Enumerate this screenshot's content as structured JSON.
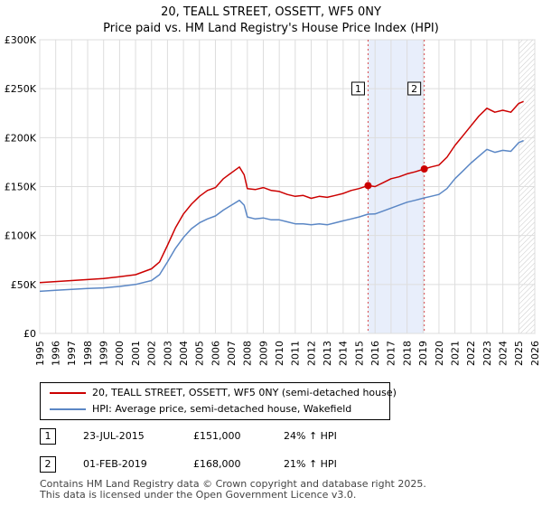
{
  "chart_data": {
    "type": "line",
    "title": "20, TEALL STREET, OSSETT, WF5 0NY",
    "subtitle": "Price paid vs. HM Land Registry's House Price Index (HPI)",
    "xlabel": "",
    "ylabel": "",
    "xlim": [
      1995,
      2026
    ],
    "ylim": [
      0,
      300000
    ],
    "x_ticks": [
      1995,
      1996,
      1997,
      1998,
      1999,
      2000,
      2001,
      2002,
      2003,
      2004,
      2005,
      2006,
      2007,
      2008,
      2009,
      2010,
      2011,
      2012,
      2013,
      2014,
      2015,
      2016,
      2017,
      2018,
      2019,
      2020,
      2021,
      2022,
      2023,
      2024,
      2025,
      2026
    ],
    "y_ticks": [
      0,
      50000,
      100000,
      150000,
      200000,
      250000,
      300000
    ],
    "y_tick_labels": [
      "£0",
      "£50K",
      "£100K",
      "£150K",
      "£200K",
      "£250K",
      "£300K"
    ],
    "grid": true,
    "shaded_span": [
      2015.56,
      2019.08
    ],
    "hatched_from": 2025.0,
    "series": [
      {
        "name": "20, TEALL STREET, OSSETT, WF5 0NY (semi-detached house)",
        "color": "#cc0000",
        "x": [
          1995,
          1996,
          1997,
          1998,
          1999,
          2000,
          2001,
          2002,
          2002.5,
          2003,
          2003.5,
          2004,
          2004.5,
          2005,
          2005.5,
          2006,
          2006.5,
          2007,
          2007.5,
          2007.8,
          2008,
          2008.5,
          2009,
          2009.5,
          2010,
          2010.5,
          2011,
          2011.5,
          2012,
          2012.5,
          2013,
          2013.5,
          2014,
          2014.5,
          2015,
          2015.56,
          2016,
          2016.5,
          2017,
          2017.5,
          2018,
          2018.5,
          2019.08,
          2019.5,
          2020,
          2020.5,
          2021,
          2021.5,
          2022,
          2022.5,
          2023,
          2023.5,
          2024,
          2024.5,
          2025,
          2025.3
        ],
        "y": [
          52000,
          53000,
          54000,
          55000,
          56000,
          58000,
          60000,
          66000,
          73000,
          90000,
          108000,
          122000,
          132000,
          140000,
          146000,
          149000,
          158000,
          164000,
          170000,
          162000,
          148000,
          147000,
          149000,
          146000,
          145000,
          142000,
          140000,
          141000,
          138000,
          140000,
          139000,
          141000,
          143000,
          146000,
          148000,
          151000,
          150000,
          154000,
          158000,
          160000,
          163000,
          165000,
          168000,
          170000,
          172000,
          180000,
          192000,
          202000,
          212000,
          222000,
          230000,
          226000,
          228000,
          226000,
          235000,
          237000
        ]
      },
      {
        "name": "HPI: Average price, semi-detached house, Wakefield",
        "color": "#5b87c5",
        "x": [
          1995,
          1996,
          1997,
          1998,
          1999,
          2000,
          2001,
          2002,
          2002.5,
          2003,
          2003.5,
          2004,
          2004.5,
          2005,
          2005.5,
          2006,
          2006.5,
          2007,
          2007.5,
          2007.8,
          2008,
          2008.5,
          2009,
          2009.5,
          2010,
          2010.5,
          2011,
          2011.5,
          2012,
          2012.5,
          2013,
          2013.5,
          2014,
          2014.5,
          2015,
          2015.56,
          2016,
          2016.5,
          2017,
          2017.5,
          2018,
          2018.5,
          2019.08,
          2019.5,
          2020,
          2020.5,
          2021,
          2021.5,
          2022,
          2022.5,
          2023,
          2023.5,
          2024,
          2024.5,
          2025,
          2025.3
        ],
        "y": [
          43000,
          44000,
          45000,
          46000,
          46500,
          48000,
          50000,
          54000,
          60000,
          73000,
          87000,
          98000,
          107000,
          113000,
          117000,
          120000,
          126000,
          131000,
          136000,
          131000,
          119000,
          117000,
          118000,
          116000,
          116000,
          114000,
          112000,
          112000,
          111000,
          112000,
          111000,
          113000,
          115000,
          117000,
          119000,
          121800,
          122000,
          125000,
          128000,
          131000,
          134000,
          136000,
          138500,
          140000,
          142000,
          148000,
          158000,
          166000,
          174000,
          181000,
          188000,
          185000,
          187000,
          186000,
          195000,
          197000
        ]
      }
    ],
    "transactions": [
      {
        "label": "1",
        "x": 2015.56,
        "y": 151000
      },
      {
        "label": "2",
        "x": 2019.08,
        "y": 168000
      }
    ]
  },
  "transactions_table": [
    {
      "marker": "1",
      "date": "23-JUL-2015",
      "price": "£151,000",
      "hpi": "24% ↑ HPI"
    },
    {
      "marker": "2",
      "date": "01-FEB-2019",
      "price": "£168,000",
      "hpi": "21% ↑ HPI"
    }
  ],
  "footer": {
    "line1": "Contains HM Land Registry data © Crown copyright and database right 2025.",
    "line2": "This data is licensed under the Open Government Licence v3.0."
  }
}
